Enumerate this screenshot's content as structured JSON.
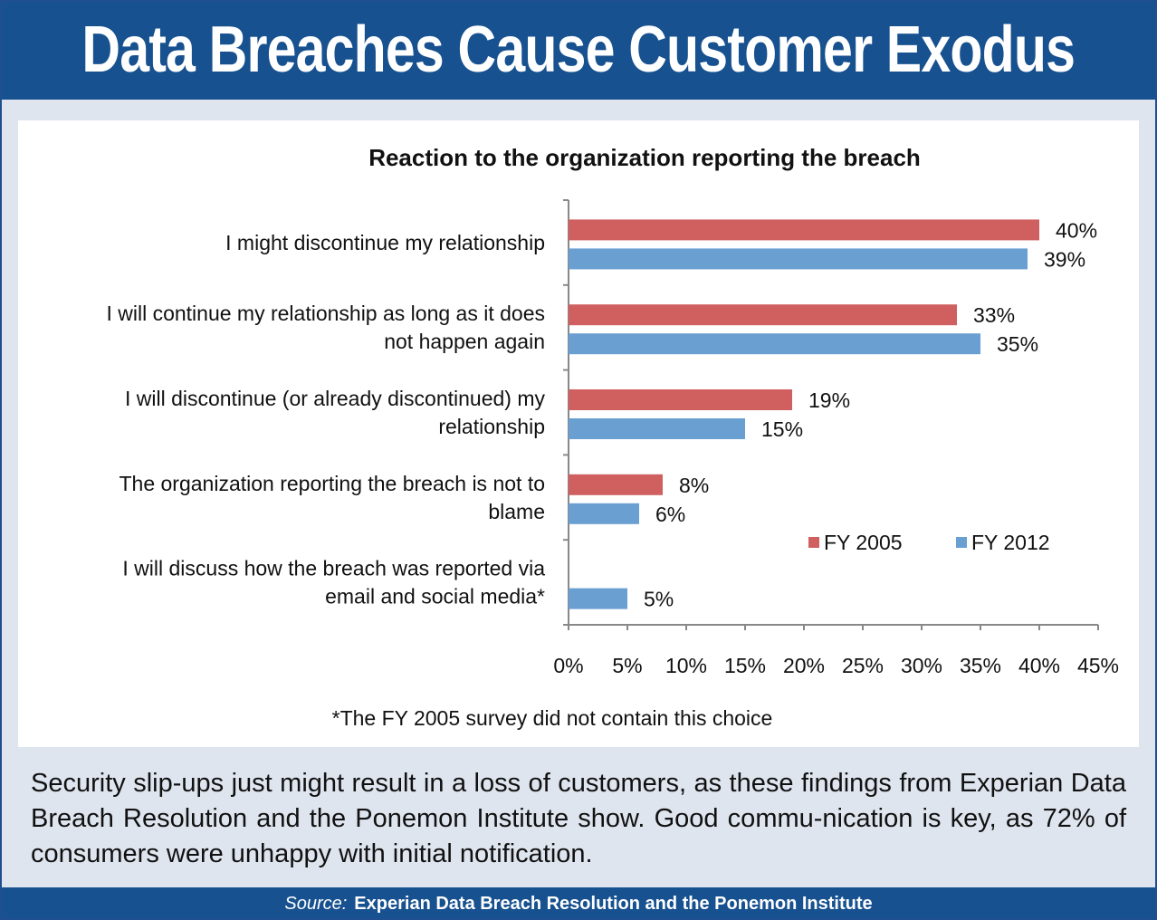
{
  "header": {
    "title": "Data Breaches Cause Customer Exodus"
  },
  "chart_data": {
    "type": "bar",
    "orientation": "horizontal",
    "title": "Reaction to the organization reporting the breach",
    "categories": [
      [
        "I might discontinue my relationship"
      ],
      [
        "I will continue my relationship as long as it does",
        "not happen again"
      ],
      [
        "I will discontinue (or already discontinued) my",
        "relationship"
      ],
      [
        "The organization reporting the breach is not to",
        "blame"
      ],
      [
        "I will discuss how the breach was reported via",
        "email and social media*"
      ]
    ],
    "series": [
      {
        "name": "FY 2005",
        "color": "#d06060",
        "values": [
          40,
          33,
          19,
          8,
          null
        ],
        "labels": [
          "40%",
          "33%",
          "19%",
          "8%",
          ""
        ]
      },
      {
        "name": "FY 2012",
        "color": "#6a9fd2",
        "values": [
          39,
          35,
          15,
          6,
          5
        ],
        "labels": [
          "39%",
          "35%",
          "15%",
          "6%",
          "5%"
        ]
      }
    ],
    "xlim": [
      0,
      45
    ],
    "xticks": [
      0,
      5,
      10,
      15,
      20,
      25,
      30,
      35,
      40,
      45
    ],
    "xtick_labels": [
      "0%",
      "5%",
      "10%",
      "15%",
      "20%",
      "25%",
      "30%",
      "35%",
      "40%",
      "45%"
    ],
    "grid": false,
    "legend": "inside-right",
    "footnote": "*The FY 2005 survey did not contain this choice"
  },
  "caption": "Security slip-ups just might result in a loss of customers, as these findings from Experian Data Breach Resolution and the Ponemon Institute show. Good commu-nication is key, as 72% of consumers were unhappy with initial notification.",
  "footer": {
    "source_label": "Source:",
    "source_text": "Experian Data Breach Resolution and the Ponemon Institute"
  }
}
